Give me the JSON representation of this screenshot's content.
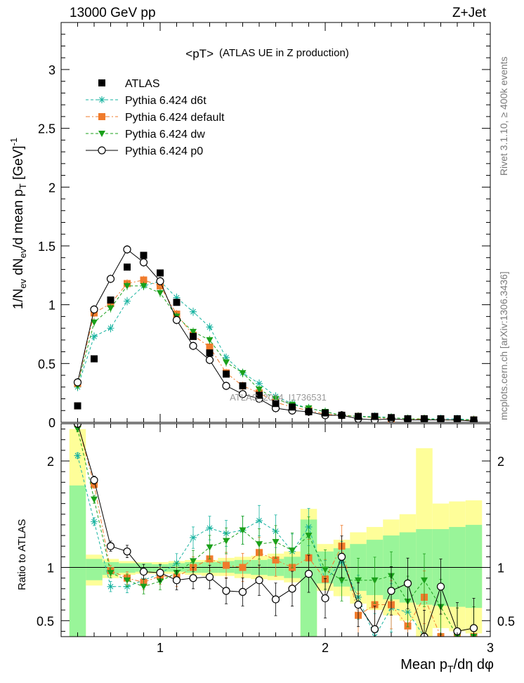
{
  "header": {
    "left": "13000 GeV pp",
    "right": "Z+Jet"
  },
  "side_labels": {
    "rivet": "Rivet 3.1.10, ≥ 400k events",
    "mcplots": "mcplots.cern.ch [arXiv:1306.3436]"
  },
  "chart_data": [
    {
      "type": "scatter",
      "panel": "main",
      "title": "<pT>",
      "subtitle": "(ATLAS UE in Z production)",
      "watermark": "ATLAS_2014_I1736531",
      "ylabel": "1/N_ev dN_ev/d mean p_T [GeV]^-1",
      "xlim": [
        0.4,
        3.0
      ],
      "ylim": [
        0,
        3.4
      ],
      "y_ticks": [
        0,
        0.5,
        1,
        1.5,
        2,
        2.5,
        3
      ],
      "y_tick_labels": [
        "0",
        "0.5",
        "1",
        "1.5",
        "2",
        "2.5",
        "3"
      ],
      "legend_position": "top-left",
      "x": [
        0.5,
        0.6,
        0.7,
        0.8,
        0.9,
        1.0,
        1.1,
        1.2,
        1.3,
        1.4,
        1.5,
        1.6,
        1.7,
        1.8,
        1.9,
        2.0,
        2.1,
        2.2,
        2.3,
        2.4,
        2.5,
        2.6,
        2.7,
        2.8,
        2.9
      ],
      "series": [
        {
          "name": "ATLAS",
          "color": "#000000",
          "marker": "square",
          "values": [
            0.14,
            0.54,
            1.04,
            1.32,
            1.42,
            1.27,
            1.02,
            0.73,
            0.59,
            0.41,
            0.31,
            0.23,
            0.16,
            0.13,
            0.09,
            0.08,
            0.06,
            0.05,
            0.05,
            0.04,
            0.03,
            0.03,
            0.03,
            0.03,
            0.02
          ]
        },
        {
          "name": "Pythia 6.424 d6t",
          "color": "#17b3a0",
          "marker": "star",
          "line": "dashed",
          "values": [
            0.3,
            0.73,
            0.8,
            1.03,
            1.16,
            1.2,
            1.06,
            0.94,
            0.81,
            0.55,
            0.42,
            0.33,
            0.22,
            0.16,
            0.12,
            0.09,
            0.06,
            0.05,
            0.05,
            0.04,
            0.03,
            0.03,
            0.03,
            0.03,
            0.02
          ]
        },
        {
          "name": "Pythia 6.424 default",
          "color": "#f07b2c",
          "marker": "square",
          "line": "dashdot",
          "values": [
            0.33,
            0.93,
            1.01,
            1.18,
            1.21,
            1.16,
            0.92,
            0.74,
            0.64,
            0.42,
            0.31,
            0.25,
            0.17,
            0.13,
            0.1,
            0.07,
            0.06,
            0.05,
            0.04,
            0.03,
            0.02,
            0.03,
            0.02,
            0.02,
            0.02
          ]
        },
        {
          "name": "Pythia 6.424 dw",
          "color": "#1aa01a",
          "marker": "triangle-down",
          "line": "dashed",
          "values": [
            0.31,
            0.85,
            0.97,
            1.16,
            1.16,
            1.1,
            0.9,
            0.77,
            0.7,
            0.51,
            0.42,
            0.28,
            0.2,
            0.15,
            0.12,
            0.09,
            0.06,
            0.05,
            0.04,
            0.04,
            0.03,
            0.03,
            0.02,
            0.02,
            0.02
          ]
        },
        {
          "name": "Pythia 6.424 p0",
          "color": "#000000",
          "marker": "circle-open",
          "line": "solid",
          "values": [
            0.34,
            0.96,
            1.22,
            1.47,
            1.36,
            1.2,
            0.87,
            0.65,
            0.53,
            0.31,
            0.24,
            0.2,
            0.12,
            0.1,
            0.09,
            0.06,
            0.06,
            0.03,
            0.02,
            0.03,
            0.02,
            0.02,
            0.02,
            0.02,
            0.01
          ]
        }
      ]
    },
    {
      "type": "scatter",
      "panel": "ratio",
      "ylabel": "Ratio to ATLAS",
      "xlabel": "Mean p_T/dη dφ",
      "xlim": [
        0.4,
        3.0
      ],
      "ylim": [
        0.35,
        2.35
      ],
      "x_ticks": [
        1,
        2,
        3
      ],
      "x_tick_labels": [
        "1",
        "2",
        "3"
      ],
      "y_ticks": [
        0.5,
        1,
        2
      ],
      "y_tick_labels": [
        "0.5",
        "1",
        "2"
      ],
      "reference_line": 1,
      "uncertainty_bands": {
        "inner_color": "#99f599",
        "outer_color": "#fefe99",
        "bins": [
          {
            "lo": 0.45,
            "hi": 0.55,
            "inner": [
              0.35,
              1.77
            ],
            "outer": [
              0.35,
              2.3
            ]
          },
          {
            "lo": 0.55,
            "hi": 0.65,
            "inner": [
              0.88,
              1.08
            ],
            "outer": [
              0.83,
              1.12
            ]
          },
          {
            "lo": 0.65,
            "hi": 0.75,
            "inner": [
              0.93,
              1.05
            ],
            "outer": [
              0.9,
              1.08
            ]
          },
          {
            "lo": 0.75,
            "hi": 0.85,
            "inner": [
              0.95,
              1.04
            ],
            "outer": [
              0.93,
              1.06
            ]
          },
          {
            "lo": 0.85,
            "hi": 0.95,
            "inner": [
              0.96,
              1.04
            ],
            "outer": [
              0.94,
              1.05
            ]
          },
          {
            "lo": 0.95,
            "hi": 1.05,
            "inner": [
              0.96,
              1.03
            ],
            "outer": [
              0.94,
              1.05
            ]
          },
          {
            "lo": 1.05,
            "hi": 1.15,
            "inner": [
              0.96,
              1.04
            ],
            "outer": [
              0.94,
              1.06
            ]
          },
          {
            "lo": 1.15,
            "hi": 1.25,
            "inner": [
              0.95,
              1.05
            ],
            "outer": [
              0.93,
              1.07
            ]
          },
          {
            "lo": 1.25,
            "hi": 1.35,
            "inner": [
              0.95,
              1.05
            ],
            "outer": [
              0.92,
              1.07
            ]
          },
          {
            "lo": 1.35,
            "hi": 1.45,
            "inner": [
              0.95,
              1.06
            ],
            "outer": [
              0.92,
              1.09
            ]
          },
          {
            "lo": 1.45,
            "hi": 1.55,
            "inner": [
              0.94,
              1.07
            ],
            "outer": [
              0.9,
              1.1
            ]
          },
          {
            "lo": 1.55,
            "hi": 1.65,
            "inner": [
              0.93,
              1.07
            ],
            "outer": [
              0.89,
              1.11
            ]
          },
          {
            "lo": 1.65,
            "hi": 1.75,
            "inner": [
              0.92,
              1.08
            ],
            "outer": [
              0.88,
              1.13
            ]
          },
          {
            "lo": 1.75,
            "hi": 1.85,
            "inner": [
              0.9,
              1.1
            ],
            "outer": [
              0.86,
              1.15
            ]
          },
          {
            "lo": 1.85,
            "hi": 1.95,
            "inner": [
              0.35,
              1.45
            ],
            "outer": [
              0.35,
              1.55
            ]
          },
          {
            "lo": 1.95,
            "hi": 2.05,
            "inner": [
              0.85,
              1.15
            ],
            "outer": [
              0.78,
              1.22
            ]
          },
          {
            "lo": 2.05,
            "hi": 2.15,
            "inner": [
              0.82,
              1.18
            ],
            "outer": [
              0.73,
              1.26
            ]
          },
          {
            "lo": 2.15,
            "hi": 2.25,
            "inner": [
              0.78,
              1.22
            ],
            "outer": [
              0.66,
              1.33
            ]
          },
          {
            "lo": 2.25,
            "hi": 2.35,
            "inner": [
              0.74,
              1.26
            ],
            "outer": [
              0.6,
              1.38
            ]
          },
          {
            "lo": 2.35,
            "hi": 2.45,
            "inner": [
              0.7,
              1.3
            ],
            "outer": [
              0.55,
              1.45
            ]
          },
          {
            "lo": 2.45,
            "hi": 2.55,
            "inner": [
              0.67,
              1.33
            ],
            "outer": [
              0.5,
              1.5
            ]
          },
          {
            "lo": 2.55,
            "hi": 2.65,
            "inner": [
              0.65,
              1.36
            ],
            "outer": [
              0.35,
              2.12
            ]
          },
          {
            "lo": 2.65,
            "hi": 2.75,
            "inner": [
              0.64,
              1.36
            ],
            "outer": [
              0.43,
              1.6
            ]
          },
          {
            "lo": 2.75,
            "hi": 2.85,
            "inner": [
              0.63,
              1.38
            ],
            "outer": [
              0.4,
              1.62
            ]
          },
          {
            "lo": 2.85,
            "hi": 2.95,
            "inner": [
              0.62,
              1.4
            ],
            "outer": [
              0.38,
              1.63
            ]
          }
        ]
      },
      "x": [
        0.5,
        0.6,
        0.7,
        0.8,
        0.9,
        1.0,
        1.1,
        1.2,
        1.3,
        1.4,
        1.5,
        1.6,
        1.7,
        1.8,
        1.9,
        2.0,
        2.1,
        2.2,
        2.3,
        2.4,
        2.5,
        2.6,
        2.7,
        2.8,
        2.9
      ],
      "series": [
        {
          "name": "Pythia 6.424 d6t",
          "color": "#17b3a0",
          "marker": "star",
          "line": "dashed",
          "values": [
            2.05,
            1.43,
            0.82,
            0.82,
            0.88,
            0.94,
            1.04,
            1.28,
            1.37,
            1.32,
            1.35,
            1.44,
            1.34,
            1.15,
            1.38,
            0.88,
            1.05,
            0.72,
            0.35,
            0.62,
            0.58,
            0.35,
            0.35,
            0.35,
            0.35
          ]
        },
        {
          "name": "Pythia 6.424 default",
          "color": "#f07b2c",
          "marker": "square",
          "line": "dashdot",
          "values": [
            2.35,
            1.78,
            0.97,
            0.9,
            0.86,
            0.92,
            0.91,
            1.0,
            1.08,
            1.02,
            1.0,
            1.14,
            1.07,
            1.0,
            1.09,
            0.89,
            1.2,
            0.55,
            0.65,
            0.65,
            0.45,
            0.72,
            0.35,
            0.35,
            0.35
          ]
        },
        {
          "name": "Pythia 6.424 dw",
          "color": "#1aa01a",
          "marker": "triangle-down",
          "line": "dashed",
          "values": [
            2.3,
            1.64,
            0.95,
            0.88,
            0.82,
            0.87,
            0.95,
            1.06,
            1.19,
            1.25,
            1.35,
            1.22,
            1.24,
            1.16,
            1.3,
            0.98,
            0.88,
            0.88,
            0.88,
            0.92,
            0.68,
            0.88,
            0.63,
            0.35,
            0.35
          ]
        },
        {
          "name": "Pythia 6.424 p0",
          "color": "#000000",
          "marker": "circle-open",
          "line": "solid",
          "values": [
            2.35,
            1.82,
            1.2,
            1.15,
            0.96,
            0.95,
            0.88,
            0.9,
            0.91,
            0.78,
            0.77,
            0.88,
            0.7,
            0.8,
            0.94,
            0.71,
            1.1,
            0.65,
            0.42,
            0.78,
            0.85,
            0.35,
            0.82,
            0.4,
            0.43
          ]
        }
      ]
    }
  ]
}
